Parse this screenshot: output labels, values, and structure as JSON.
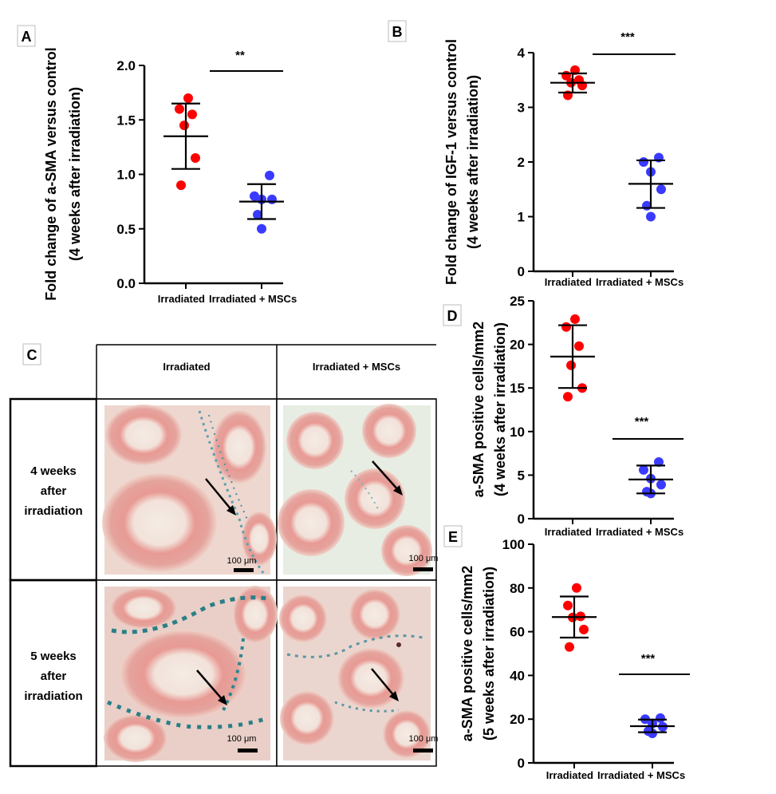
{
  "panel_labels": {
    "A": "A",
    "B": "B",
    "C": "C",
    "D": "D",
    "E": "E"
  },
  "colors": {
    "irradiated": "#ff0000",
    "msc": "#3a3aff",
    "axis": "#000000"
  },
  "chart_data": [
    {
      "id": "A",
      "type": "scatter",
      "ylabel_line1": "Fold change of a-SMA versus control",
      "ylabel_line2": "(4 weeks after irradiation)",
      "xticks": [
        "Irradiated",
        "Irradiated + MSCs"
      ],
      "yticks": [
        "0.0",
        "0.5",
        "1.0",
        "1.5",
        "2.0"
      ],
      "ylim": [
        0,
        2.0
      ],
      "significance": "**",
      "series": [
        {
          "name": "Irradiated",
          "values": [
            1.7,
            1.6,
            1.55,
            1.45,
            1.15,
            0.9
          ],
          "mean": 1.35,
          "sd_low": 1.05,
          "sd_high": 1.65
        },
        {
          "name": "Irradiated + MSCs",
          "values": [
            0.99,
            0.8,
            0.77,
            0.77,
            0.63,
            0.5
          ],
          "mean": 0.75,
          "sd_low": 0.59,
          "sd_high": 0.91
        }
      ]
    },
    {
      "id": "B",
      "type": "scatter",
      "ylabel_line1": "Fold change of IGF-1  versus control",
      "ylabel_line2": "(4 weeks after irradiation)",
      "xticks": [
        "Irradiated",
        "Irradiated + MSCs"
      ],
      "yticks": [
        "0",
        "1",
        "2",
        "3",
        "4"
      ],
      "ylim": [
        0,
        4
      ],
      "significance": "***",
      "series": [
        {
          "name": "Irradiated",
          "values": [
            3.68,
            3.58,
            3.5,
            3.45,
            3.4,
            3.22
          ],
          "mean": 3.45,
          "sd_low": 3.27,
          "sd_high": 3.62
        },
        {
          "name": "Irradiated + MSCs",
          "values": [
            2.08,
            2.0,
            1.82,
            1.5,
            1.2,
            1.0
          ],
          "mean": 1.6,
          "sd_low": 1.16,
          "sd_high": 2.03
        }
      ]
    },
    {
      "id": "D",
      "type": "scatter",
      "ylabel_line1": "a-SMA positive cells/mm2",
      "ylabel_line2": "(4 weeks after irradiation)",
      "xticks": [
        "Irradiated",
        "Irradiated + MSCs"
      ],
      "yticks": [
        "0",
        "5",
        "10",
        "15",
        "20",
        "25"
      ],
      "ylim": [
        0,
        25
      ],
      "significance": "***",
      "series": [
        {
          "name": "Irradiated",
          "values": [
            22.9,
            22.0,
            19.8,
            17.6,
            15.0,
            14.0
          ],
          "mean": 18.6,
          "sd_low": 15.0,
          "sd_high": 22.2
        },
        {
          "name": "Irradiated + MSCs",
          "values": [
            6.5,
            5.6,
            4.6,
            3.9,
            3.1,
            2.9
          ],
          "mean": 4.5,
          "sd_low": 2.9,
          "sd_high": 6.1
        }
      ]
    },
    {
      "id": "E",
      "type": "scatter",
      "ylabel_line1": "a-SMA positive cells/mm2",
      "ylabel_line2": "(5 weeks after irradiation)",
      "xticks": [
        "Irradiated",
        "Irradiated + MSCs"
      ],
      "yticks": [
        "0",
        "20",
        "40",
        "60",
        "80",
        "100"
      ],
      "ylim": [
        0,
        100
      ],
      "significance": "***",
      "series": [
        {
          "name": "Irradiated",
          "values": [
            80.0,
            72.0,
            67.0,
            66.5,
            61.0,
            53.0
          ],
          "mean": 66.7,
          "sd_low": 57.3,
          "sd_high": 76.1
        },
        {
          "name": "Irradiated + MSCs",
          "values": [
            20.5,
            20.0,
            18.0,
            16.5,
            14.5,
            13.5
          ],
          "mean": 16.8,
          "sd_low": 14.0,
          "sd_high": 19.8
        }
      ]
    }
  ],
  "histology": {
    "col_headers": [
      "Irradiated",
      "Irradiated + MSCs"
    ],
    "row_labels": [
      [
        "4 weeks",
        "after",
        "irradiation"
      ],
      [
        "5 weeks",
        "after",
        "irradiation"
      ]
    ],
    "scale_bar": "100 μm"
  }
}
